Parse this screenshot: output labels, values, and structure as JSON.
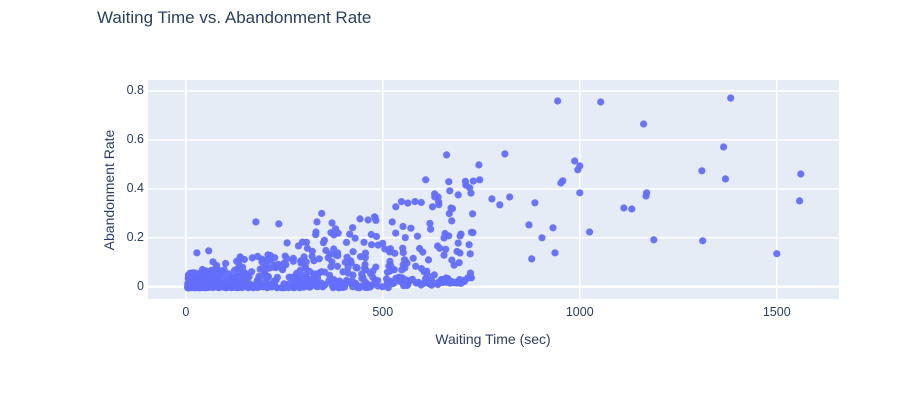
{
  "chart_data": {
    "type": "scatter",
    "title": "Waiting Time vs. Abandonment Rate",
    "xlabel": "Waiting Time (sec)",
    "ylabel": "Abandonment Rate",
    "x_range": [
      -96,
      1658
    ],
    "y_range": [
      -0.05,
      0.845
    ],
    "x_ticks": [
      0,
      500,
      1000,
      1500
    ],
    "y_ticks": [
      0,
      0.2,
      0.4,
      0.6,
      0.8
    ],
    "grid": true,
    "legend": "none",
    "colors": {
      "marker": "#636efa",
      "plot_bg": "#e5ecf6",
      "grid": "#ffffff",
      "text": "#2a3f5f",
      "paper_bg": "#ffffff"
    },
    "trend": "positive correlation: abandonment rate rises with waiting time; dense cluster below 520 sec with rates under ~0.3, sparse high-rate points beyond",
    "notable_points": [
      [
        18,
        0.057
      ],
      [
        28,
        0.139
      ],
      [
        51,
        0.057
      ],
      [
        58,
        0.147
      ],
      [
        69,
        0.102
      ],
      [
        178,
        0.265
      ],
      [
        236,
        0.257
      ],
      [
        333,
        0.265
      ],
      [
        345,
        0.3
      ],
      [
        371,
        0.261
      ],
      [
        533,
        0.327
      ],
      [
        609,
        0.437
      ],
      [
        632,
        0.367
      ],
      [
        642,
        0.347
      ],
      [
        662,
        0.539
      ],
      [
        670,
        0.392
      ],
      [
        673,
        0.322
      ],
      [
        675,
        0.269
      ],
      [
        728,
        0.298
      ],
      [
        744,
        0.498
      ],
      [
        746,
        0.437
      ],
      [
        777,
        0.359
      ],
      [
        797,
        0.335
      ],
      [
        810,
        0.543
      ],
      [
        822,
        0.367
      ],
      [
        871,
        0.253
      ],
      [
        878,
        0.114
      ],
      [
        886,
        0.343
      ],
      [
        904,
        0.2
      ],
      [
        932,
        0.241
      ],
      [
        937,
        0.139
      ],
      [
        944,
        0.759
      ],
      [
        952,
        0.424
      ],
      [
        957,
        0.433
      ],
      [
        987,
        0.514
      ],
      [
        995,
        0.478
      ],
      [
        1000,
        0.384
      ],
      [
        1000,
        0.494
      ],
      [
        1025,
        0.224
      ],
      [
        1053,
        0.755
      ],
      [
        1112,
        0.322
      ],
      [
        1132,
        0.318
      ],
      [
        1162,
        0.665
      ],
      [
        1168,
        0.371
      ],
      [
        1170,
        0.384
      ],
      [
        1188,
        0.192
      ],
      [
        1310,
        0.474
      ],
      [
        1312,
        0.188
      ],
      [
        1365,
        0.571
      ],
      [
        1370,
        0.441
      ],
      [
        1383,
        0.771
      ],
      [
        1500,
        0.135
      ],
      [
        1558,
        0.351
      ],
      [
        1561,
        0.461
      ]
    ],
    "dense_cluster": {
      "description": "dense cloud of ~620 points, waiting time 5-730 sec skewed toward low values, abandonment rate near 0 widening to ~0.3 as waiting time grows",
      "count": 620,
      "seed": 7,
      "x_min": 5,
      "x_max": 730,
      "x_skew": 1.75,
      "y_amp_base": 0.05,
      "y_amp_slope": 0.00055,
      "y_skew": 2.3,
      "y_rise_after": 500,
      "y_rise_rate": 0.0001,
      "y_floor": -0.004
    }
  }
}
